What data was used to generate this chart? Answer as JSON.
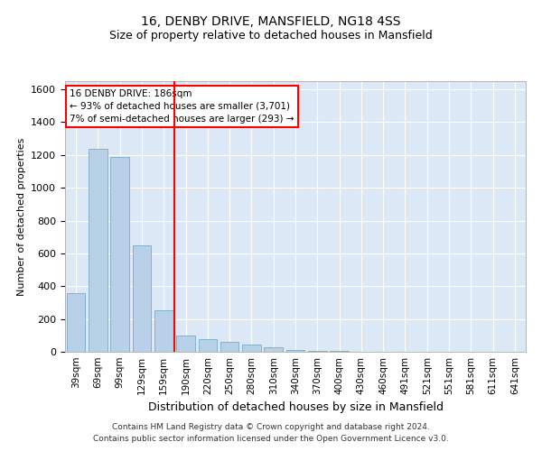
{
  "title": "16, DENBY DRIVE, MANSFIELD, NG18 4SS",
  "subtitle": "Size of property relative to detached houses in Mansfield",
  "xlabel": "Distribution of detached houses by size in Mansfield",
  "ylabel": "Number of detached properties",
  "footnote1": "Contains HM Land Registry data © Crown copyright and database right 2024.",
  "footnote2": "Contains public sector information licensed under the Open Government Licence v3.0.",
  "categories": [
    "39sqm",
    "69sqm",
    "99sqm",
    "129sqm",
    "159sqm",
    "190sqm",
    "220sqm",
    "250sqm",
    "280sqm",
    "310sqm",
    "340sqm",
    "370sqm",
    "400sqm",
    "430sqm",
    "460sqm",
    "491sqm",
    "521sqm",
    "551sqm",
    "581sqm",
    "611sqm",
    "641sqm"
  ],
  "values": [
    360,
    1240,
    1190,
    650,
    255,
    100,
    75,
    60,
    45,
    30,
    10,
    5,
    5,
    0,
    0,
    0,
    0,
    0,
    0,
    0,
    0
  ],
  "bar_color": "#b8d0e8",
  "bar_edge_color": "#7aaac8",
  "background_color": "#dce8f5",
  "grid_color": "#ffffff",
  "vline_color": "red",
  "vline_x": 4.5,
  "annotation_text": "16 DENBY DRIVE: 186sqm\n← 93% of detached houses are smaller (3,701)\n7% of semi-detached houses are larger (293) →",
  "annotation_box_color": "white",
  "annotation_box_edge": "red",
  "ylim": [
    0,
    1650
  ],
  "yticks": [
    0,
    200,
    400,
    600,
    800,
    1000,
    1200,
    1400,
    1600
  ],
  "title_fontsize": 10,
  "subtitle_fontsize": 9,
  "ylabel_fontsize": 8,
  "xlabel_fontsize": 9
}
